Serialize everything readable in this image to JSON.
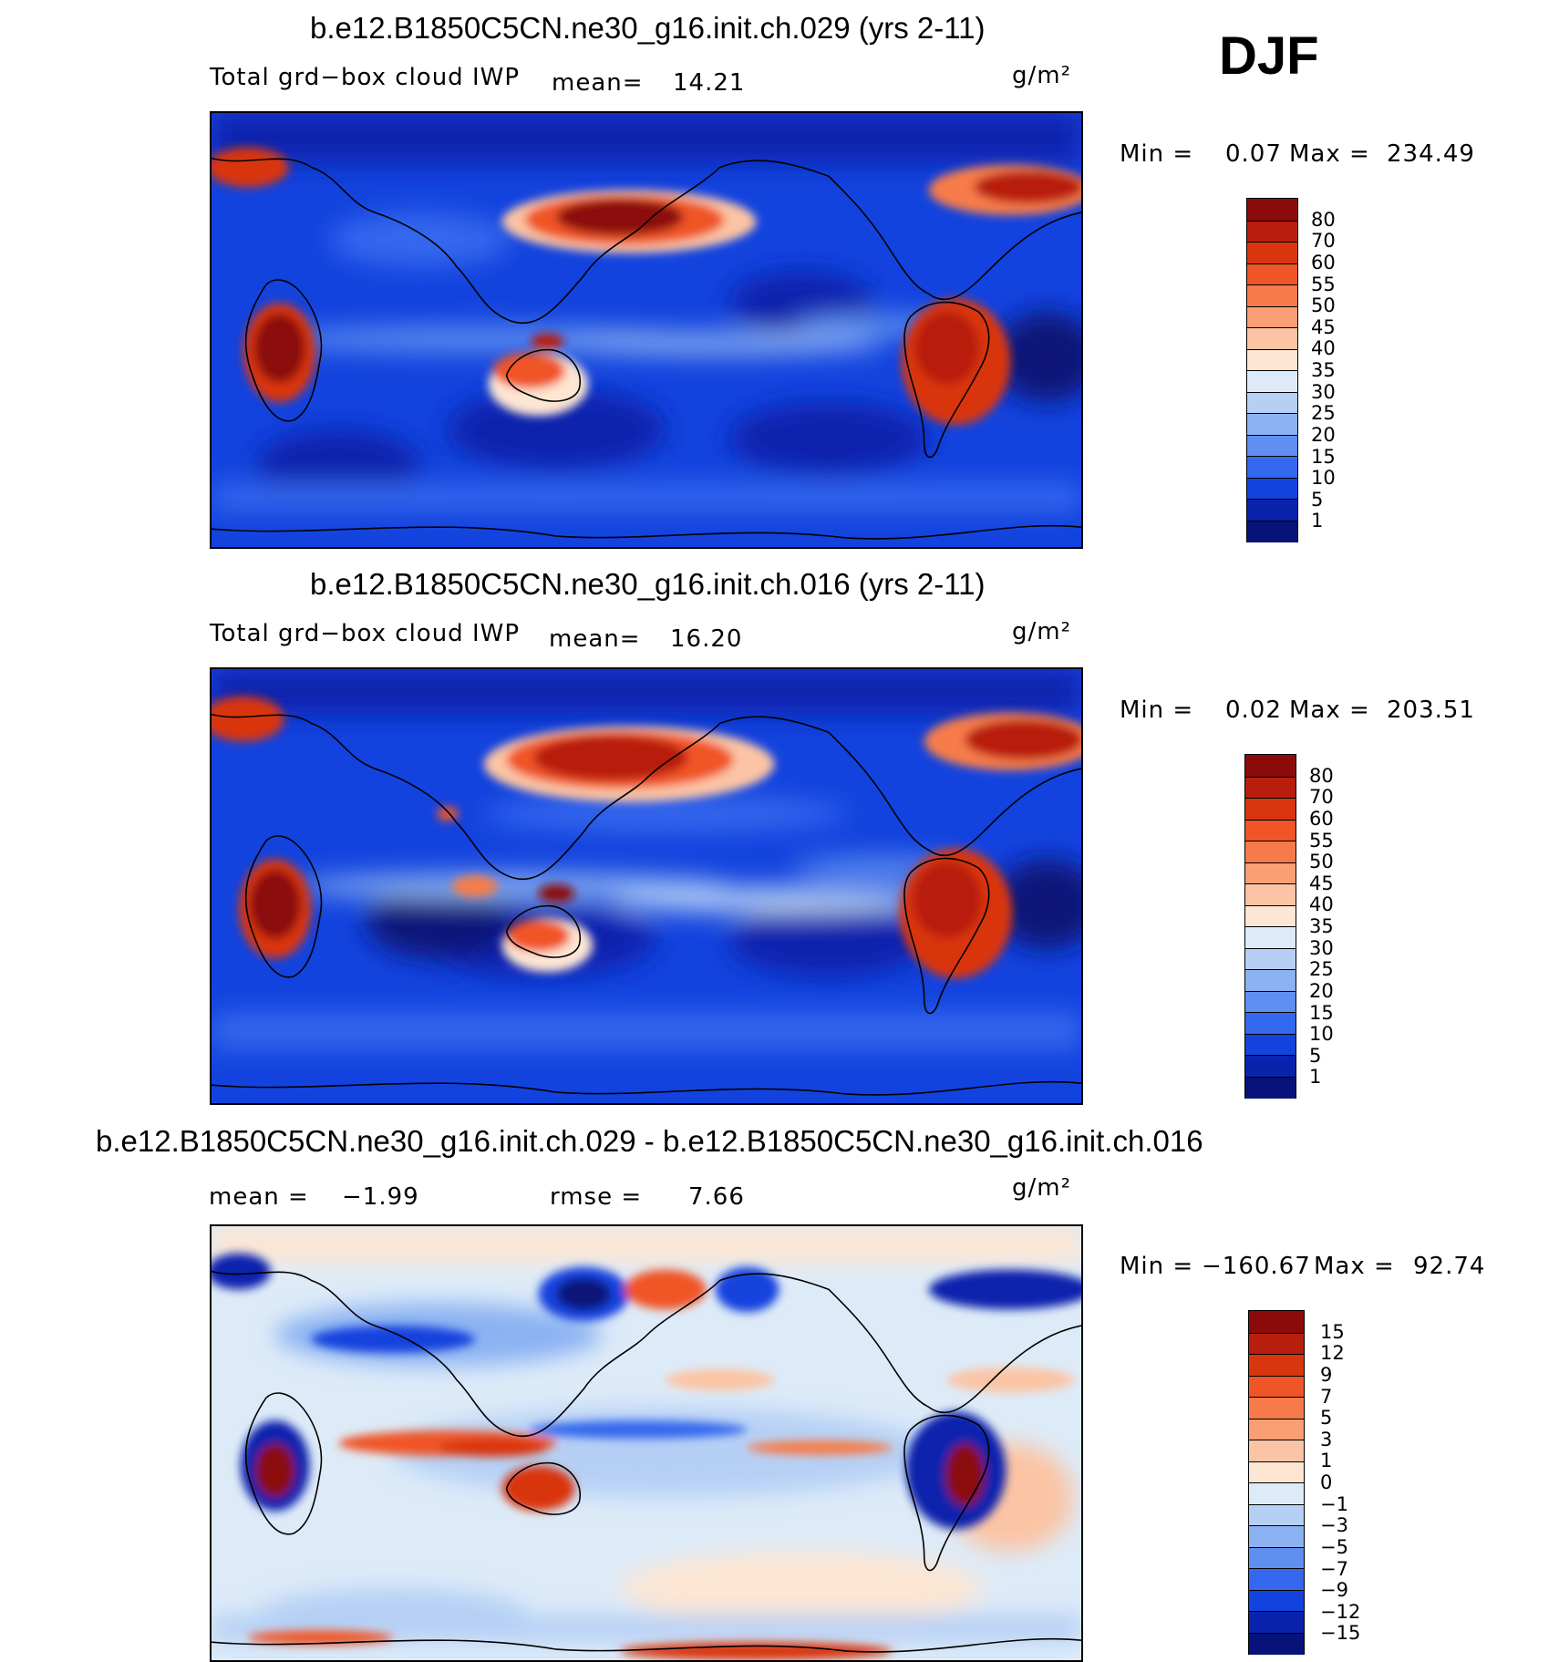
{
  "season": "DJF",
  "panels": [
    {
      "title": "b.e12.B1850C5CN.ne30_g16.init.ch.029 (yrs 2-11)",
      "left_label": "Total grd−box cloud IWP",
      "mean_label": "mean=",
      "mean_value": "14.21",
      "units": "g/m²",
      "min_label": "Min =",
      "min_value": "0.07",
      "max_label": "Max =",
      "max_value": "234.49",
      "colorbar_labels": [
        "80",
        "70",
        "60",
        "55",
        "50",
        "45",
        "40",
        "35",
        "30",
        "25",
        "20",
        "15",
        "10",
        "5",
        "1"
      ]
    },
    {
      "title": "b.e12.B1850C5CN.ne30_g16.init.ch.016 (yrs 2-11)",
      "left_label": "Total grd−box cloud IWP",
      "mean_label": "mean=",
      "mean_value": "16.20",
      "units": "g/m²",
      "min_label": "Min =",
      "min_value": "0.02",
      "max_label": "Max =",
      "max_value": "203.51",
      "colorbar_labels": [
        "80",
        "70",
        "60",
        "55",
        "50",
        "45",
        "40",
        "35",
        "30",
        "25",
        "20",
        "15",
        "10",
        "5",
        "1"
      ]
    },
    {
      "title": "b.e12.B1850C5CN.ne30_g16.init.ch.029 - b.e12.B1850C5CN.ne30_g16.init.ch.016",
      "mean_label": "mean =",
      "mean_value": "−1.99",
      "rmse_label": "rmse =",
      "rmse_value": "7.66",
      "units": "g/m²",
      "min_label": "Min =",
      "min_value": "−160.67",
      "max_label": "Max =",
      "max_value": "92.74",
      "colorbar_labels": [
        "15",
        "12",
        "9",
        "7",
        "5",
        "3",
        "1",
        "0",
        "−1",
        "−3",
        "−5",
        "−7",
        "−9",
        "−12",
        "−15"
      ]
    }
  ],
  "colors": {
    "abs_scale": [
      "#8b0b0b",
      "#b81e0e",
      "#d9360f",
      "#f05528",
      "#f77b4a",
      "#fa9e74",
      "#fbc4a4",
      "#fde6d3",
      "#ddebf8",
      "#b6d0f5",
      "#8bb2f2",
      "#5f8ff0",
      "#3468ee",
      "#1343de",
      "#0a23ad",
      "#071378"
    ],
    "diff_scale": [
      "#8b0b0b",
      "#b81e0e",
      "#d9360f",
      "#f05528",
      "#f77b4a",
      "#fa9e74",
      "#fbc4a4",
      "#fde6d3",
      "#ddebf8",
      "#b6d0f5",
      "#8bb2f2",
      "#5f8ff0",
      "#3468ee",
      "#1343de",
      "#0a23ad",
      "#071378"
    ]
  }
}
